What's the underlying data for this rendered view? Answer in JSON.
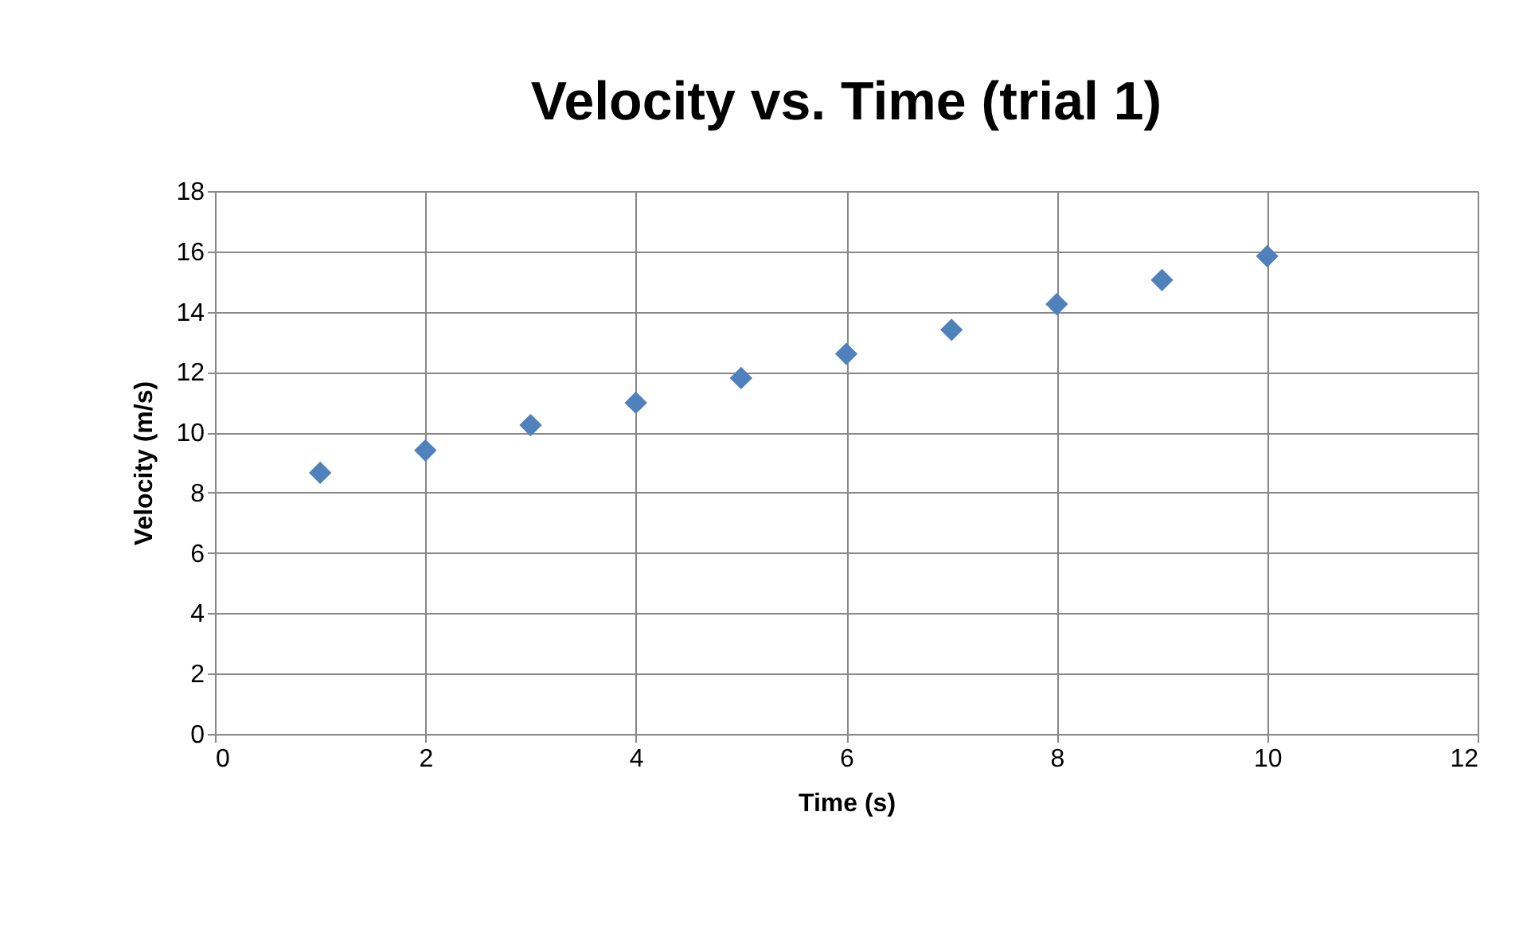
{
  "chart_data": {
    "type": "scatter",
    "title": "Velocity vs. Time (trial 1)",
    "xlabel": "Time (s)",
    "ylabel": "Velocity (m/s)",
    "x": [
      1,
      2,
      3,
      4,
      5,
      6,
      7,
      8,
      9,
      10
    ],
    "series": [
      {
        "color": "#4f81bd",
        "values": [
          8.66,
          9.4,
          10.24,
          10.98,
          11.8,
          12.6,
          13.4,
          14.25,
          15.05,
          15.84
        ]
      }
    ],
    "xlim": [
      0,
      12
    ],
    "xticks": [
      0,
      2,
      4,
      6,
      8,
      10,
      12
    ],
    "ylim": [
      0,
      18
    ],
    "yticks": [
      0,
      2,
      4,
      6,
      8,
      10,
      12,
      14,
      16,
      18
    ],
    "grid": true,
    "marker": "diamond"
  }
}
